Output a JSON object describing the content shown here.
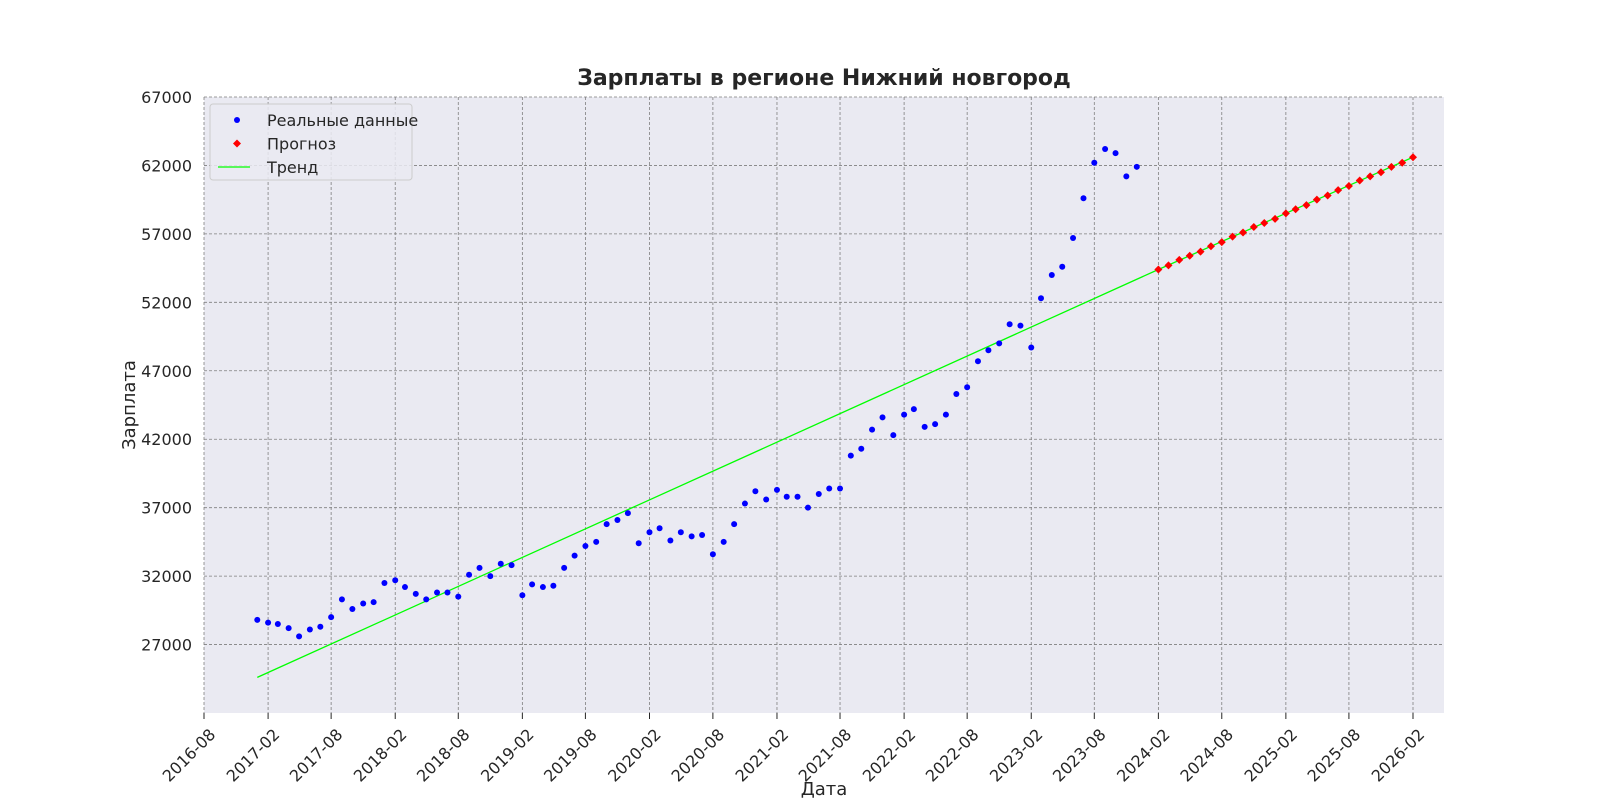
{
  "chart_data": {
    "type": "scatter",
    "title": "Зарплаты в регионе Нижний новгород",
    "xlabel": "Дата",
    "ylabel": "Зарплата",
    "ylim": [
      22000,
      67000
    ],
    "xlim": [
      "2016-08-01",
      "2026-05-01"
    ],
    "grid": true,
    "legend_position": "top-left",
    "x_ticks": [
      "2016-08",
      "2017-02",
      "2017-08",
      "2018-02",
      "2018-08",
      "2019-02",
      "2019-08",
      "2020-02",
      "2020-08",
      "2021-02",
      "2021-08",
      "2022-02",
      "2022-08",
      "2023-02",
      "2023-08",
      "2024-02",
      "2024-08",
      "2025-02",
      "2025-08",
      "2026-02"
    ],
    "y_ticks": [
      27000,
      32000,
      37000,
      42000,
      47000,
      52000,
      57000,
      62000,
      67000
    ],
    "colors": {
      "actual": "#0000ff",
      "forecast": "#ff0000",
      "trend": "#00ff00",
      "plot_bg": "#eaeaf2",
      "grid": "#7f7f7f"
    },
    "series": [
      {
        "name": "Реальные данные",
        "kind": "scatter",
        "marker": "circle",
        "color": "#0000ff",
        "points": [
          [
            "2017-01",
            28800
          ],
          [
            "2017-02",
            28600
          ],
          [
            "2017-03",
            28500
          ],
          [
            "2017-04",
            28200
          ],
          [
            "2017-05",
            27600
          ],
          [
            "2017-06",
            28100
          ],
          [
            "2017-07",
            28300
          ],
          [
            "2017-08",
            29000
          ],
          [
            "2017-09",
            30300
          ],
          [
            "2017-10",
            29600
          ],
          [
            "2017-11",
            30000
          ],
          [
            "2017-12",
            30100
          ],
          [
            "2018-01",
            31500
          ],
          [
            "2018-02",
            31700
          ],
          [
            "2018-03",
            31200
          ],
          [
            "2018-04",
            30700
          ],
          [
            "2018-05",
            30300
          ],
          [
            "2018-06",
            30800
          ],
          [
            "2018-07",
            30800
          ],
          [
            "2018-08",
            30500
          ],
          [
            "2018-09",
            32100
          ],
          [
            "2018-10",
            32600
          ],
          [
            "2018-11",
            32000
          ],
          [
            "2018-12",
            32900
          ],
          [
            "2019-01",
            32800
          ],
          [
            "2019-02",
            30600
          ],
          [
            "2019-03",
            31400
          ],
          [
            "2019-04",
            31200
          ],
          [
            "2019-05",
            31300
          ],
          [
            "2019-06",
            32600
          ],
          [
            "2019-07",
            33500
          ],
          [
            "2019-08",
            34200
          ],
          [
            "2019-09",
            34500
          ],
          [
            "2019-10",
            35800
          ],
          [
            "2019-11",
            36100
          ],
          [
            "2019-12",
            36600
          ],
          [
            "2020-01",
            34400
          ],
          [
            "2020-02",
            35200
          ],
          [
            "2020-03",
            35500
          ],
          [
            "2020-04",
            34600
          ],
          [
            "2020-05",
            35200
          ],
          [
            "2020-06",
            34900
          ],
          [
            "2020-07",
            35000
          ],
          [
            "2020-08",
            33600
          ],
          [
            "2020-09",
            34500
          ],
          [
            "2020-10",
            35800
          ],
          [
            "2020-11",
            37300
          ],
          [
            "2020-12",
            38200
          ],
          [
            "2021-01",
            37600
          ],
          [
            "2021-02",
            38300
          ],
          [
            "2021-03",
            37800
          ],
          [
            "2021-04",
            37800
          ],
          [
            "2021-05",
            37000
          ],
          [
            "2021-06",
            38000
          ],
          [
            "2021-07",
            38400
          ],
          [
            "2021-08",
            38400
          ],
          [
            "2021-09",
            40800
          ],
          [
            "2021-10",
            41300
          ],
          [
            "2021-11",
            42700
          ],
          [
            "2021-12",
            43600
          ],
          [
            "2022-01",
            42300
          ],
          [
            "2022-02",
            43800
          ],
          [
            "2022-03",
            44200
          ],
          [
            "2022-04",
            42900
          ],
          [
            "2022-05",
            43100
          ],
          [
            "2022-06",
            43800
          ],
          [
            "2022-07",
            45300
          ],
          [
            "2022-08",
            45800
          ],
          [
            "2022-09",
            47700
          ],
          [
            "2022-10",
            48500
          ],
          [
            "2022-11",
            49000
          ],
          [
            "2022-12",
            50400
          ],
          [
            "2023-01",
            50300
          ],
          [
            "2023-02",
            48700
          ],
          [
            "2023-03",
            52300
          ],
          [
            "2023-04",
            54000
          ],
          [
            "2023-05",
            54600
          ],
          [
            "2023-06",
            56700
          ],
          [
            "2023-07",
            59600
          ],
          [
            "2023-08",
            62200
          ],
          [
            "2023-09",
            63200
          ],
          [
            "2023-10",
            62900
          ],
          [
            "2023-11",
            61200
          ],
          [
            "2023-12",
            61900
          ]
        ]
      },
      {
        "name": "Прогноз",
        "kind": "scatter",
        "marker": "diamond",
        "color": "#ff0000",
        "points": [
          [
            "2024-02",
            54400
          ],
          [
            "2024-03",
            54700
          ],
          [
            "2024-04",
            55100
          ],
          [
            "2024-05",
            55400
          ],
          [
            "2024-06",
            55700
          ],
          [
            "2024-07",
            56100
          ],
          [
            "2024-08",
            56400
          ],
          [
            "2024-09",
            56800
          ],
          [
            "2024-10",
            57100
          ],
          [
            "2024-11",
            57500
          ],
          [
            "2024-12",
            57800
          ],
          [
            "2025-01",
            58100
          ],
          [
            "2025-02",
            58500
          ],
          [
            "2025-03",
            58800
          ],
          [
            "2025-04",
            59100
          ],
          [
            "2025-05",
            59500
          ],
          [
            "2025-06",
            59800
          ],
          [
            "2025-07",
            60200
          ],
          [
            "2025-08",
            60500
          ],
          [
            "2025-09",
            60900
          ],
          [
            "2025-10",
            61200
          ],
          [
            "2025-11",
            61500
          ],
          [
            "2025-12",
            61900
          ],
          [
            "2026-01",
            62200
          ],
          [
            "2026-02",
            62600
          ]
        ]
      },
      {
        "name": "Тренд",
        "kind": "line",
        "color": "#00ff00",
        "points": [
          [
            "2017-01",
            24600
          ],
          [
            "2024-02",
            54400
          ],
          [
            "2026-02",
            62600
          ]
        ]
      }
    ]
  }
}
